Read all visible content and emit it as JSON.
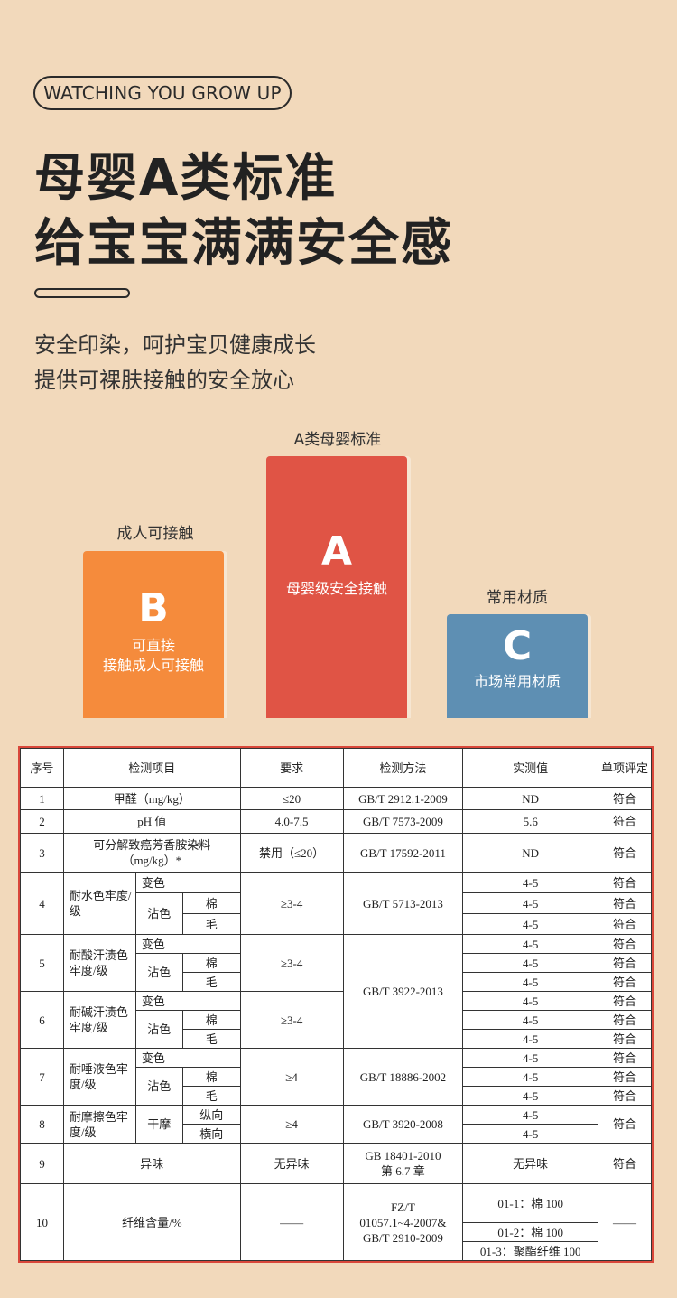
{
  "header": {
    "tagline": "WATCHING YOU GROW UP",
    "title_line1": "母婴A类标准",
    "title_line2": "给宝宝满满安全感",
    "subtitle_line1": "安全印染，呵护宝贝健康成长",
    "subtitle_line2": "提供可裸肤接触的安全放心"
  },
  "cards": [
    {
      "label": "成人可接触",
      "letter": "B",
      "text1": "可直接",
      "text2": "接触成人可接触",
      "color": "#f58b3c"
    },
    {
      "label": "A类母婴标准",
      "letter": "A",
      "text1": "母婴级安全接触",
      "color": "#e05445"
    },
    {
      "label": "常用材质",
      "letter": "C",
      "text1": "市场常用材质",
      "color": "#5e8fb3"
    }
  ],
  "table": {
    "headers": [
      "序号",
      "检测项目",
      "要求",
      "检测方法",
      "实测值",
      "单项评定"
    ],
    "r1": {
      "no": "1",
      "item": "甲醛（mg/kg）",
      "req": "≤20",
      "method": "GB/T 2912.1-2009",
      "val": "ND",
      "ok": "符合"
    },
    "r2": {
      "no": "2",
      "item": "pH 值",
      "req": "4.0-7.5",
      "method": "GB/T 7573-2009",
      "val": "5.6",
      "ok": "符合"
    },
    "r3": {
      "no": "3",
      "item": "可分解致癌芳香胺染料（mg/kg）*",
      "req": "禁用（≤20）",
      "method": "GB/T 17592-2011",
      "val": "ND",
      "ok": "符合"
    },
    "sub": {
      "change": "变色",
      "stain": "沾色",
      "cotton": "棉",
      "wool": "毛",
      "dry": "干摩",
      "long": "纵向",
      "cross": "横向"
    },
    "r4": {
      "no": "4",
      "item": "耐水色牢度/级",
      "req": "≥3-4",
      "method": "GB/T 5713-2013",
      "vals": [
        "4-5",
        "4-5",
        "4-5"
      ],
      "ok": [
        "符合",
        "符合",
        "符合"
      ]
    },
    "r5": {
      "no": "5",
      "item": "耐酸汗渍色牢度/级",
      "req": "≥3-4",
      "method": "GB/T 3922-2013",
      "vals": [
        "4-5",
        "4-5",
        "4-5"
      ],
      "ok": [
        "符合",
        "符合",
        "符合"
      ]
    },
    "r6": {
      "no": "6",
      "item": "耐碱汗渍色牢度/级",
      "req": "≥3-4",
      "vals": [
        "4-5",
        "4-5",
        "4-5"
      ],
      "ok": [
        "符合",
        "符合",
        "符合"
      ]
    },
    "r7": {
      "no": "7",
      "item": "耐唾液色牢度/级",
      "req": "≥4",
      "method": "GB/T 18886-2002",
      "vals": [
        "4-5",
        "4-5",
        "4-5"
      ],
      "ok": [
        "符合",
        "符合",
        "符合"
      ]
    },
    "r8": {
      "no": "8",
      "item": "耐摩擦色牢度/级",
      "req": "≥4",
      "method": "GB/T 3920-2008",
      "vals": [
        "4-5",
        "4-5"
      ],
      "ok": "符合"
    },
    "r9": {
      "no": "9",
      "item": "异味",
      "req": "无异味",
      "method1": "GB 18401-2010",
      "method2": "第 6.7 章",
      "val": "无异味",
      "ok": "符合"
    },
    "r10": {
      "no": "10",
      "item": "纤维含量/%",
      "req": "——",
      "method1": "FZ/T",
      "method2": "01057.1~4-2007&",
      "method3": "GB/T 2910-2009",
      "vals": [
        "01-1：棉 100",
        "01-2：棉 100",
        "01-3：聚酯纤维 100"
      ],
      "ok": "——"
    }
  }
}
